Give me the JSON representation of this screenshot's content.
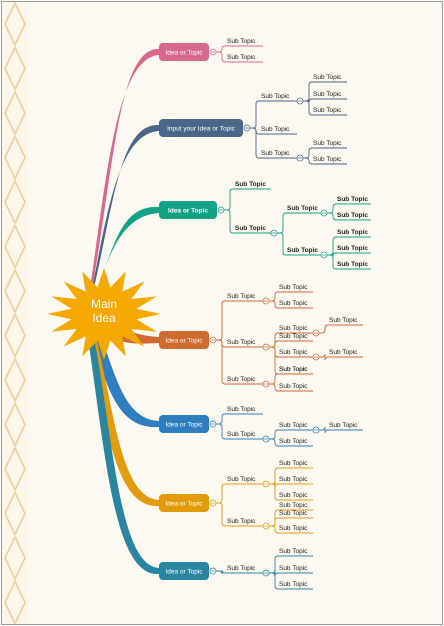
{
  "main": {
    "label_line1": "Main",
    "label_line2": "Idea",
    "color": "#f5a800"
  },
  "topics": [
    {
      "label": "Idea or Topic",
      "color": "#d8688c",
      "subs": [
        {
          "label": "Sub Topic"
        },
        {
          "label": "Sub Topic"
        }
      ]
    },
    {
      "label": "Input your Idea or Topic",
      "color": "#4a6688",
      "subs": [
        {
          "label": "Sub Topic",
          "children": [
            {
              "label": "Sub Topic"
            },
            {
              "label": "Sub Topic"
            },
            {
              "label": "Sub Topic"
            }
          ]
        },
        {
          "label": "Sub Topic"
        },
        {
          "label": "Sub Topic",
          "children": [
            {
              "label": "Sub Topic"
            },
            {
              "label": "Sub Topic"
            }
          ]
        }
      ]
    },
    {
      "label": "Idea or Topic",
      "color": "#14a286",
      "bold": true,
      "subs": [
        {
          "label": "Sub Topic"
        },
        {
          "label": "Sub Topic",
          "children": [
            {
              "label": "Sub Topic",
              "children": [
                {
                  "label": "Sub Topic"
                },
                {
                  "label": "Sub Topic"
                }
              ]
            },
            {
              "label": "Sub Topic",
              "children": [
                {
                  "label": "Sub Topic"
                },
                {
                  "label": "Sub Topic"
                },
                {
                  "label": "Sub Topic"
                }
              ]
            }
          ]
        }
      ]
    },
    {
      "label": "Idea or Topic",
      "color": "#cf6a30",
      "subs": [
        {
          "label": "Sub Topic",
          "children": [
            {
              "label": "Sub Topic"
            },
            {
              "label": "Sub Topic"
            }
          ]
        },
        {
          "label": "Sub Topic",
          "children": [
            {
              "label": "Sub Topic",
              "children": [
                {
                  "label": "Sub Topic"
                }
              ]
            },
            {
              "label": "Sub Topic"
            },
            {
              "label": "Sub Topic",
              "children": [
                {
                  "label": "Sub Topic"
                }
              ]
            },
            {
              "label": "Sub Topic"
            }
          ]
        },
        {
          "label": "Sub Topic",
          "children": [
            {
              "label": "Sub Topic"
            },
            {
              "label": "Sub Topic"
            }
          ]
        }
      ]
    },
    {
      "label": "Idea or Topic",
      "color": "#2f7fc0",
      "subs": [
        {
          "label": "Sub Topic"
        },
        {
          "label": "Sub Topic",
          "children": [
            {
              "label": "Sub Topic",
              "children": [
                {
                  "label": "Sub Topic"
                }
              ]
            },
            {
              "label": "Sub Topic"
            }
          ]
        }
      ]
    },
    {
      "label": "Idea or Topic",
      "color": "#e29b0c",
      "subs": [
        {
          "label": "Sub Topic",
          "children": [
            {
              "label": "Sub Topic"
            },
            {
              "label": "Sub Topic"
            },
            {
              "label": "Sub Topic"
            }
          ]
        },
        {
          "label": "Sub Topic",
          "children": [
            {
              "label": "Sub Topic"
            },
            {
              "label": "Sub Topic"
            },
            {
              "label": "Sub Topic"
            }
          ]
        }
      ]
    },
    {
      "label": "Idea or Topic",
      "color": "#2a86a0",
      "subs": [
        {
          "label": "Sub Topic",
          "children": [
            {
              "label": "Sub Topic"
            },
            {
              "label": "Sub Topic"
            },
            {
              "label": "Sub Topic"
            }
          ]
        }
      ]
    }
  ]
}
